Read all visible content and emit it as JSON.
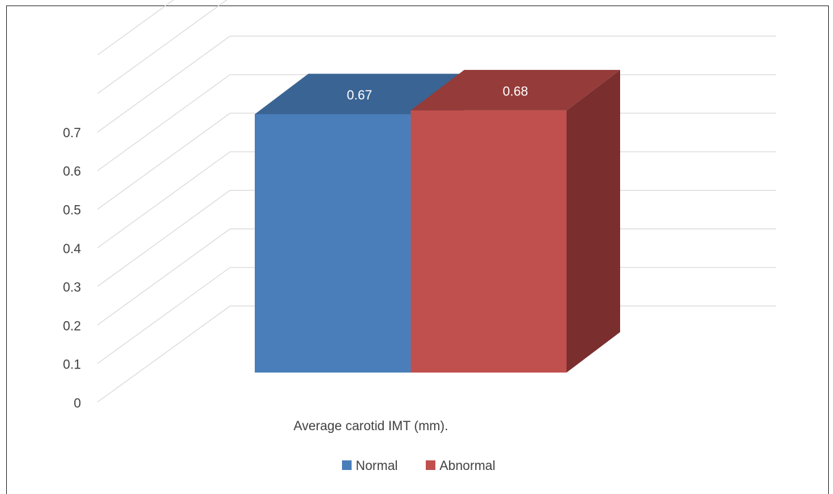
{
  "chart_data": {
    "type": "bar",
    "categories": [
      "Average carotid IMT (mm)."
    ],
    "series": [
      {
        "name": "Normal",
        "values": [
          0.67
        ],
        "color": "#4a7ebb",
        "top_color": "#3a6493",
        "side_color": "#2f5580"
      },
      {
        "name": "Abnormal",
        "values": [
          0.68
        ],
        "color": "#c0504d",
        "top_color": "#953b39",
        "side_color": "#7a2f2e"
      }
    ],
    "ylim": [
      0,
      0.7
    ],
    "yticks": [
      "0",
      "0.1",
      "0.2",
      "0.3",
      "0.4",
      "0.5",
      "0.6",
      "0.7"
    ],
    "grid": true,
    "legend": "bottom",
    "data_labels": [
      "0.67",
      "0.68"
    ],
    "style": "3d-column"
  }
}
